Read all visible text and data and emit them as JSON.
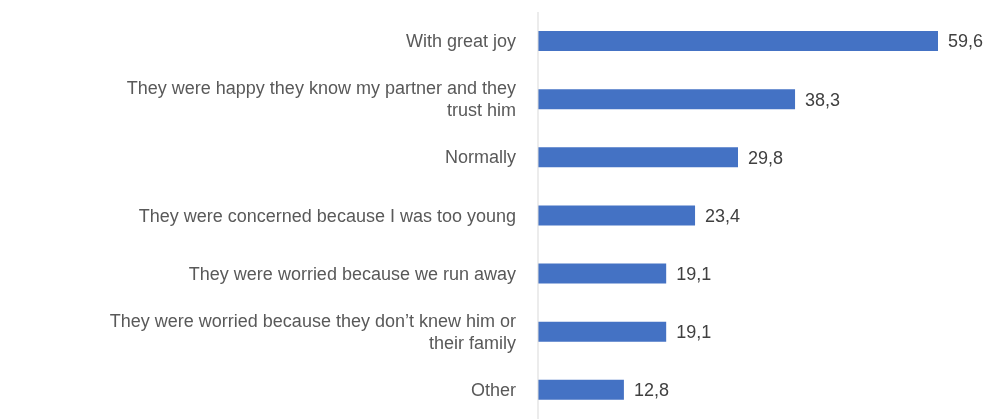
{
  "chart_data": {
    "type": "bar",
    "orientation": "horizontal",
    "categories": [
      "With great joy",
      "They were happy they know my partner and they trust him",
      "Normally",
      "They were concerned because I was too young",
      "They were worried because we run away",
      "They were worried because they don’t knew him or their family",
      "Other"
    ],
    "values": [
      59.6,
      38.3,
      29.8,
      23.4,
      19.1,
      19.1,
      12.8
    ],
    "value_labels": [
      "59,6",
      "38,3",
      "29,8",
      "23,4",
      "19,1",
      "19,1",
      "12,8"
    ],
    "color": "#4472c4",
    "grid": false,
    "legend": false
  }
}
